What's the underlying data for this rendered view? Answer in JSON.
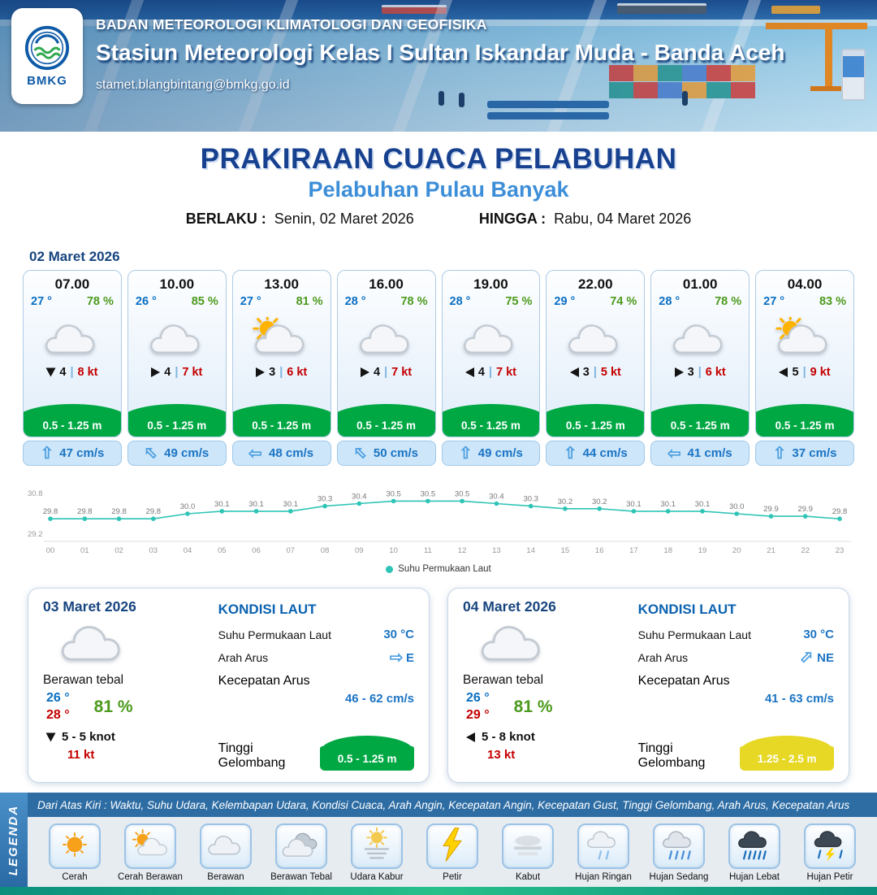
{
  "header": {
    "logo_text": "BMKG",
    "agency": "BADAN METEOROLOGI KLIMATOLOGI DAN GEOFISIKA",
    "station": "Stasiun Meteorologi Kelas I Sultan Iskandar Muda - Banda Aceh",
    "email": "stamet.blangbintang@bmkg.go.id"
  },
  "title": {
    "main": "PRAKIRAAN CUACA PELABUHAN",
    "subtitle": "Pelabuhan Pulau Banyak",
    "berlaku_label": "BERLAKU :",
    "berlaku_value": "Senin, 02 Maret 2026",
    "hingga_label": "HINGGA :",
    "hingga_value": "Rabu, 04 Maret 2026"
  },
  "forecast_date": "02 Maret 2026",
  "ui": {
    "arrow_glyph": "⇧",
    "wind_sep": "|"
  },
  "hourly": [
    {
      "time": "07.00",
      "temp": "27 °",
      "rh": "78 %",
      "icon": "berawan",
      "wind_speed": "4",
      "wind_gust": "8 kt",
      "wind_deg": 90,
      "wave": "0.5 - 1.25 m",
      "current": "47 cm/s",
      "current_deg": 0
    },
    {
      "time": "10.00",
      "temp": "26 °",
      "rh": "85 %",
      "icon": "berawan",
      "wind_speed": "4",
      "wind_gust": "7 kt",
      "wind_deg": 0,
      "wave": "0.5 - 1.25 m",
      "current": "49 cm/s",
      "current_deg": -45
    },
    {
      "time": "13.00",
      "temp": "27 °",
      "rh": "81 %",
      "icon": "cerah-berawan",
      "wind_speed": "3",
      "wind_gust": "6 kt",
      "wind_deg": 0,
      "wave": "0.5 - 1.25 m",
      "current": "48 cm/s",
      "current_deg": -90
    },
    {
      "time": "16.00",
      "temp": "28 °",
      "rh": "78 %",
      "icon": "berawan",
      "wind_speed": "4",
      "wind_gust": "7 kt",
      "wind_deg": 0,
      "wave": "0.5 - 1.25 m",
      "current": "50 cm/s",
      "current_deg": -45
    },
    {
      "time": "19.00",
      "temp": "28 °",
      "rh": "75 %",
      "icon": "berawan",
      "wind_speed": "4",
      "wind_gust": "7 kt",
      "wind_deg": 180,
      "wave": "0.5 - 1.25 m",
      "current": "49 cm/s",
      "current_deg": 0
    },
    {
      "time": "22.00",
      "temp": "29 °",
      "rh": "74 %",
      "icon": "berawan",
      "wind_speed": "3",
      "wind_gust": "5 kt",
      "wind_deg": 180,
      "wave": "0.5 - 1.25 m",
      "current": "44 cm/s",
      "current_deg": 0
    },
    {
      "time": "01.00",
      "temp": "28 °",
      "rh": "78 %",
      "icon": "berawan",
      "wind_speed": "3",
      "wind_gust": "6 kt",
      "wind_deg": 0,
      "wave": "0.5 - 1.25 m",
      "current": "41 cm/s",
      "current_deg": -90
    },
    {
      "time": "04.00",
      "temp": "27 °",
      "rh": "83 %",
      "icon": "cerah-berawan",
      "wind_speed": "5",
      "wind_gust": "9 kt",
      "wind_deg": 180,
      "wave": "0.5 - 1.25 m",
      "current": "37 cm/s",
      "current_deg": 0
    }
  ],
  "chart_data": {
    "type": "line",
    "x": [
      "00",
      "01",
      "02",
      "03",
      "04",
      "05",
      "06",
      "07",
      "08",
      "09",
      "10",
      "11",
      "12",
      "13",
      "14",
      "15",
      "16",
      "17",
      "18",
      "19",
      "20",
      "21",
      "22",
      "23"
    ],
    "values": [
      29.8,
      29.8,
      29.8,
      29.8,
      30.0,
      30.1,
      30.1,
      30.1,
      30.3,
      30.4,
      30.5,
      30.5,
      30.5,
      30.4,
      30.3,
      30.2,
      30.2,
      30.1,
      30.1,
      30.1,
      30.0,
      29.9,
      29.9,
      29.8
    ],
    "ylim": [
      29.2,
      30.8
    ],
    "legend": "Suhu Permukaan Laut",
    "line_color": "#2ec4b6",
    "grid": false,
    "legend_position": "bottom"
  },
  "days": [
    {
      "date": "03 Maret 2026",
      "condition": "Berawan tebal",
      "icon": "berawan",
      "temp_min": "26 °",
      "temp_max": "28 °",
      "rh": "81 %",
      "wind_deg": 90,
      "wind_text": "5  - 5 knot",
      "gust": "11 kt",
      "sea": {
        "title": "KONDISI LAUT",
        "sst_label": "Suhu Permukaan Laut",
        "sst": "30 °C",
        "dir_label": "Arah Arus",
        "dir": "E",
        "dir_deg": 90,
        "speed_label": "Kecepatan Arus",
        "speed": "46  - 62 cm/s",
        "wave_label": "Tinggi Gelombang",
        "wave": "0.5 - 1.25 m",
        "wave_color": "#00a844"
      }
    },
    {
      "date": "04 Maret 2026",
      "condition": "Berawan tebal",
      "icon": "berawan",
      "temp_min": "26 °",
      "temp_max": "29 °",
      "rh": "81 %",
      "wind_deg": 180,
      "wind_text": "5  - 8 knot",
      "gust": "13 kt",
      "sea": {
        "title": "KONDISI LAUT",
        "sst_label": "Suhu Permukaan Laut",
        "sst": "30 °C",
        "dir_label": "Arah Arus",
        "dir": "NE",
        "dir_deg": 45,
        "speed_label": "Kecepatan Arus",
        "speed": "41  - 63 cm/s",
        "wave_label": "Tinggi Gelombang",
        "wave": "1.25 - 2.5 m",
        "wave_color": "#e6d825"
      }
    }
  ],
  "legend": {
    "title": "LEGENDA",
    "note": "Dari Atas Kiri : Waktu, Suhu Udara, Kelembapan Udara, Kondisi Cuaca, Arah Angin, Kecepatan Angin, Kecepatan Gust, Tinggi Gelombang, Arah Arus, Kecepatan Arus",
    "items": [
      {
        "label": "Cerah",
        "icon": "sun"
      },
      {
        "label": "Cerah Berawan",
        "icon": "sun-cloud"
      },
      {
        "label": "Berawan",
        "icon": "cloud"
      },
      {
        "label": "Berawan Tebal",
        "icon": "clouds"
      },
      {
        "label": "Udara Kabur",
        "icon": "haze"
      },
      {
        "label": "Petir",
        "icon": "lightning"
      },
      {
        "label": "Kabut",
        "icon": "fog"
      },
      {
        "label": "Hujan Ringan",
        "icon": "light-rain"
      },
      {
        "label": "Hujan Sedang",
        "icon": "moderate-rain"
      },
      {
        "label": "Hujan Lebat",
        "icon": "heavy-rain"
      },
      {
        "label": "Hujan Petir",
        "icon": "thunder-rain"
      }
    ]
  },
  "colors": {
    "header_blue": "#1d4e8f",
    "title_navy": "#17418f",
    "subtitle_blue": "#3d8ed8",
    "temp_blue": "#0a6fc2",
    "humidity_green": "#4c9a1d",
    "gust_red": "#c40000",
    "wave_green": "#00a844",
    "wave_yellow": "#e6d825",
    "current_blue": "#1b74c4",
    "sst_line_teal": "#2ec4b6",
    "legend_bar_blue": "#2e6da4"
  }
}
